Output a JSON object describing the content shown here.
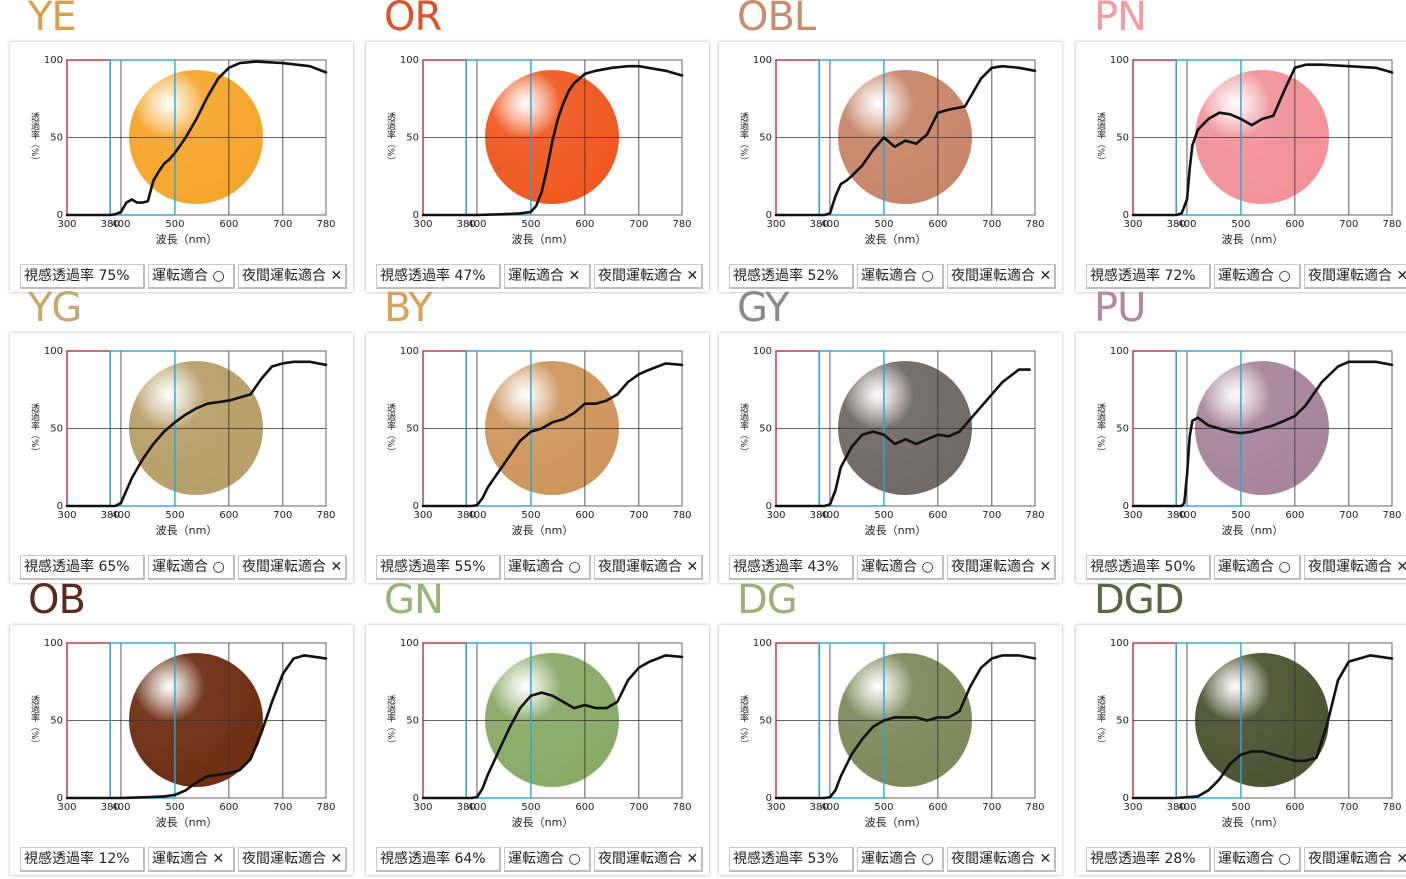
{
  "common": {
    "y_label": "透過率（%）",
    "x_label": "波長（nm）",
    "x_ticks": [
      "300",
      "380",
      "400",
      "500",
      "600",
      "700",
      "780"
    ],
    "y_ticks": [
      "0",
      "50",
      "100"
    ]
  },
  "chart_data": [
    {
      "type": "line",
      "title": "YE",
      "title_color": "#d9a04a",
      "lens_color": "#f6a62d",
      "transmittance": "視感透過率 75%",
      "driving": "運転適合 ○",
      "night": "夜間運転適合 ✕",
      "x": [
        300,
        380,
        390,
        400,
        410,
        420,
        430,
        440,
        450,
        460,
        470,
        480,
        490,
        500,
        520,
        540,
        560,
        580,
        600,
        620,
        650,
        700,
        750,
        780
      ],
      "y": [
        0,
        0,
        0.5,
        2,
        8,
        10,
        8,
        8,
        9,
        22,
        28,
        33,
        36,
        40,
        50,
        62,
        76,
        88,
        95,
        98,
        99,
        98,
        96,
        92
      ],
      "xlim": [
        300,
        780
      ],
      "ylim": [
        0,
        100
      ]
    },
    {
      "type": "line",
      "title": "OR",
      "title_color": "#d9532a",
      "lens_color": "#f05a22",
      "transmittance": "視感透過率 47%",
      "driving": "運転適合 ✕",
      "night": "夜間運転適合 ✕",
      "x": [
        300,
        380,
        400,
        450,
        480,
        500,
        510,
        520,
        530,
        540,
        550,
        560,
        570,
        580,
        590,
        600,
        620,
        650,
        680,
        700,
        750,
        780
      ],
      "y": [
        0,
        0,
        0,
        0.5,
        1,
        2,
        6,
        15,
        30,
        48,
        62,
        72,
        80,
        85,
        88,
        91,
        93,
        95,
        96,
        96,
        93,
        90
      ],
      "xlim": [
        300,
        780
      ],
      "ylim": [
        0,
        100
      ]
    },
    {
      "type": "line",
      "title": "OBL",
      "title_color": "#c98c6e",
      "lens_color": "#c8876a",
      "transmittance": "視感透過率 52%",
      "driving": "運転適合 ○",
      "night": "夜間運転適合 ✕",
      "x": [
        300,
        380,
        390,
        400,
        410,
        420,
        430,
        440,
        460,
        480,
        500,
        520,
        540,
        560,
        580,
        600,
        620,
        650,
        680,
        700,
        720,
        750,
        780
      ],
      "y": [
        0,
        0,
        0,
        1,
        12,
        20,
        22,
        25,
        32,
        42,
        50,
        44,
        48,
        46,
        52,
        66,
        68,
        70,
        88,
        95,
        96,
        95,
        93
      ],
      "xlim": [
        300,
        780
      ],
      "ylim": [
        0,
        100
      ]
    },
    {
      "type": "line",
      "title": "PN",
      "title_color": "#f19ba3",
      "lens_color": "#f2939a",
      "transmittance": "視感透過率 72%",
      "driving": "運転適合 ○",
      "night": "夜間運転適合 ✕",
      "x": [
        300,
        380,
        390,
        400,
        405,
        410,
        420,
        440,
        460,
        480,
        500,
        520,
        540,
        560,
        580,
        600,
        620,
        650,
        700,
        750,
        780
      ],
      "y": [
        0,
        0,
        1,
        10,
        30,
        45,
        55,
        62,
        66,
        65,
        62,
        58,
        62,
        64,
        80,
        95,
        97,
        97,
        96,
        95,
        92
      ],
      "xlim": [
        300,
        780
      ],
      "ylim": [
        0,
        100
      ]
    },
    {
      "type": "line",
      "title": "YG",
      "title_color": "#c4a870",
      "lens_color": "#b8a06a",
      "transmittance": "視感透過率 65%",
      "driving": "運転適合 ○",
      "night": "夜間運転適合 ✕",
      "x": [
        300,
        380,
        390,
        400,
        410,
        420,
        440,
        460,
        480,
        500,
        520,
        540,
        560,
        580,
        600,
        620,
        640,
        660,
        680,
        700,
        720,
        750,
        780
      ],
      "y": [
        0,
        0,
        0,
        2,
        10,
        18,
        30,
        40,
        48,
        54,
        59,
        63,
        66,
        67,
        68,
        70,
        72,
        82,
        90,
        92,
        93,
        93,
        91
      ],
      "xlim": [
        300,
        780
      ],
      "ylim": [
        0,
        100
      ]
    },
    {
      "type": "line",
      "title": "BY",
      "title_color": "#d8a05a",
      "lens_color": "#cf975e",
      "transmittance": "視感透過率 55%",
      "driving": "運転適合 ○",
      "night": "夜間運転適合 ✕",
      "x": [
        300,
        380,
        390,
        400,
        410,
        420,
        440,
        460,
        480,
        500,
        520,
        540,
        560,
        580,
        600,
        620,
        640,
        660,
        680,
        700,
        720,
        750,
        780
      ],
      "y": [
        0,
        0,
        0,
        0.5,
        5,
        12,
        22,
        32,
        42,
        48,
        50,
        54,
        56,
        60,
        66,
        66,
        68,
        72,
        80,
        85,
        88,
        92,
        91
      ],
      "xlim": [
        300,
        780
      ],
      "ylim": [
        0,
        100
      ]
    },
    {
      "type": "line",
      "title": "GY",
      "title_color": "#8a8a8a",
      "lens_color": "#726a67",
      "transmittance": "視感透過率 43%",
      "driving": "運転適合 ○",
      "night": "夜間運転適合 ✕",
      "x": [
        300,
        380,
        390,
        400,
        410,
        420,
        440,
        460,
        480,
        500,
        520,
        540,
        560,
        580,
        600,
        620,
        640,
        660,
        680,
        700,
        720,
        750,
        770
      ],
      "y": [
        0,
        0,
        0,
        1,
        10,
        25,
        38,
        46,
        48,
        46,
        40,
        43,
        40,
        43,
        46,
        45,
        48,
        56,
        64,
        72,
        80,
        88,
        88
      ],
      "xlim": [
        300,
        780
      ],
      "ylim": [
        0,
        100
      ]
    },
    {
      "type": "line",
      "title": "PU",
      "title_color": "#b4879d",
      "lens_color": "#a7869b",
      "transmittance": "視感透過率 50%",
      "driving": "運転適合 ○",
      "night": "夜間運転適合 ✕",
      "x": [
        300,
        380,
        390,
        395,
        400,
        405,
        410,
        420,
        440,
        460,
        480,
        500,
        520,
        540,
        560,
        580,
        600,
        620,
        650,
        680,
        700,
        720,
        750,
        780
      ],
      "y": [
        0,
        0,
        0,
        2,
        20,
        45,
        55,
        57,
        52,
        50,
        48,
        47,
        48,
        50,
        52,
        55,
        58,
        65,
        80,
        90,
        93,
        93,
        93,
        91
      ],
      "xlim": [
        300,
        780
      ],
      "ylim": [
        0,
        100
      ]
    },
    {
      "type": "line",
      "title": "OB",
      "title_color": "#5b2a1c",
      "lens_color": "#6e2f14",
      "transmittance": "視感透過率 12%",
      "driving": "運転適合 ✕",
      "night": "夜間運転適合 ✕",
      "x": [
        300,
        380,
        400,
        450,
        480,
        500,
        520,
        540,
        560,
        580,
        600,
        620,
        640,
        660,
        680,
        700,
        720,
        740,
        760,
        780
      ],
      "y": [
        0,
        0,
        0,
        0.5,
        1,
        2,
        5,
        10,
        14,
        15,
        16,
        18,
        25,
        42,
        62,
        80,
        90,
        92,
        91,
        90
      ],
      "xlim": [
        300,
        780
      ],
      "ylim": [
        0,
        100
      ]
    },
    {
      "type": "line",
      "title": "GN",
      "title_color": "#97b378",
      "lens_color": "#8aab68",
      "transmittance": "視感透過率 64%",
      "driving": "運転適合 ○",
      "night": "夜間運転適合 ✕",
      "x": [
        300,
        380,
        390,
        400,
        410,
        420,
        440,
        460,
        480,
        500,
        520,
        540,
        560,
        580,
        600,
        620,
        640,
        660,
        680,
        700,
        720,
        750,
        780
      ],
      "y": [
        0,
        0,
        0,
        0.5,
        6,
        15,
        30,
        45,
        58,
        66,
        68,
        66,
        62,
        58,
        60,
        58,
        58,
        62,
        76,
        84,
        88,
        92,
        91
      ],
      "xlim": [
        300,
        780
      ],
      "ylim": [
        0,
        100
      ]
    },
    {
      "type": "line",
      "title": "DG",
      "title_color": "#9fae7a",
      "lens_color": "#7f8a5c",
      "transmittance": "視感透過率 53%",
      "driving": "運転適合 ○",
      "night": "夜間運転適合 ✕",
      "x": [
        300,
        380,
        390,
        400,
        410,
        420,
        440,
        460,
        480,
        500,
        520,
        540,
        560,
        580,
        600,
        620,
        640,
        660,
        680,
        700,
        720,
        750,
        780
      ],
      "y": [
        0,
        0,
        0,
        0.5,
        5,
        14,
        28,
        38,
        46,
        50,
        52,
        52,
        52,
        50,
        52,
        52,
        56,
        72,
        84,
        90,
        92,
        92,
        90
      ],
      "xlim": [
        300,
        780
      ],
      "ylim": [
        0,
        100
      ]
    },
    {
      "type": "line",
      "title": "DGD",
      "title_color": "#5a6640",
      "lens_color": "#4d5433",
      "transmittance": "視感透過率 28%",
      "driving": "運転適合 ○",
      "night": "夜間運転適合 ✕",
      "x": [
        300,
        380,
        400,
        420,
        440,
        460,
        480,
        500,
        520,
        540,
        560,
        580,
        600,
        620,
        640,
        660,
        680,
        700,
        720,
        740,
        760,
        780
      ],
      "y": [
        0,
        0,
        0.5,
        1,
        5,
        12,
        22,
        28,
        30,
        30,
        28,
        26,
        24,
        24,
        26,
        48,
        76,
        88,
        90,
        92,
        91,
        90
      ],
      "xlim": [
        300,
        780
      ],
      "ylim": [
        0,
        100
      ]
    }
  ]
}
